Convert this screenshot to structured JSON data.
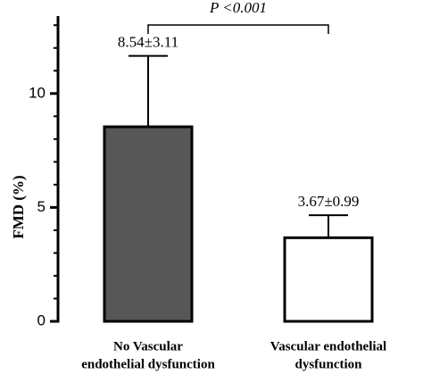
{
  "chart_data": {
    "type": "bar",
    "ylabel": "FMD (%)",
    "annotation": "P <0.001",
    "categories": [
      [
        "No Vascular",
        "endothelial dysfunction"
      ],
      [
        "Vascular endothelial",
        "dysfunction"
      ]
    ],
    "values": [
      8.54,
      3.67
    ],
    "errors": [
      3.11,
      0.99
    ],
    "value_labels": [
      "8.54±3.11",
      "3.67±0.99"
    ],
    "colors": [
      "#575757",
      "#ffffff"
    ],
    "ylim": [
      0,
      13.4
    ],
    "yticks": [
      0,
      5,
      10
    ],
    "yminorticks": [
      1,
      2,
      3,
      4,
      6,
      7,
      8,
      9,
      11,
      12,
      13
    ]
  }
}
